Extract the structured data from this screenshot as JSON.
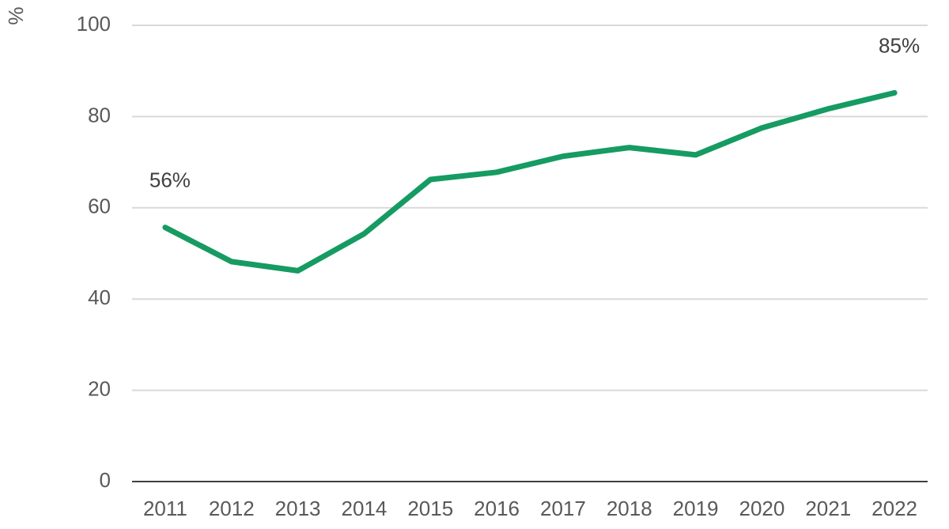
{
  "chart_data": {
    "type": "line",
    "title": "",
    "xlabel": "",
    "ylabel": "%",
    "ylim": [
      0,
      100
    ],
    "yticks": [
      0,
      20,
      40,
      60,
      80,
      100
    ],
    "grid": true,
    "categories": [
      "2011",
      "2012",
      "2013",
      "2014",
      "2015",
      "2016",
      "2017",
      "2018",
      "2019",
      "2020",
      "2021",
      "2022"
    ],
    "series": [
      {
        "color": "#169b62",
        "values": [
          55.7,
          48.2,
          46.2,
          54.3,
          66.2,
          67.8,
          71.3,
          73.2,
          71.6,
          77.5,
          81.7,
          85.2
        ]
      }
    ],
    "annotations": [
      {
        "category": "2011",
        "text": "56%"
      },
      {
        "category": "2022",
        "text": "85%"
      }
    ]
  }
}
